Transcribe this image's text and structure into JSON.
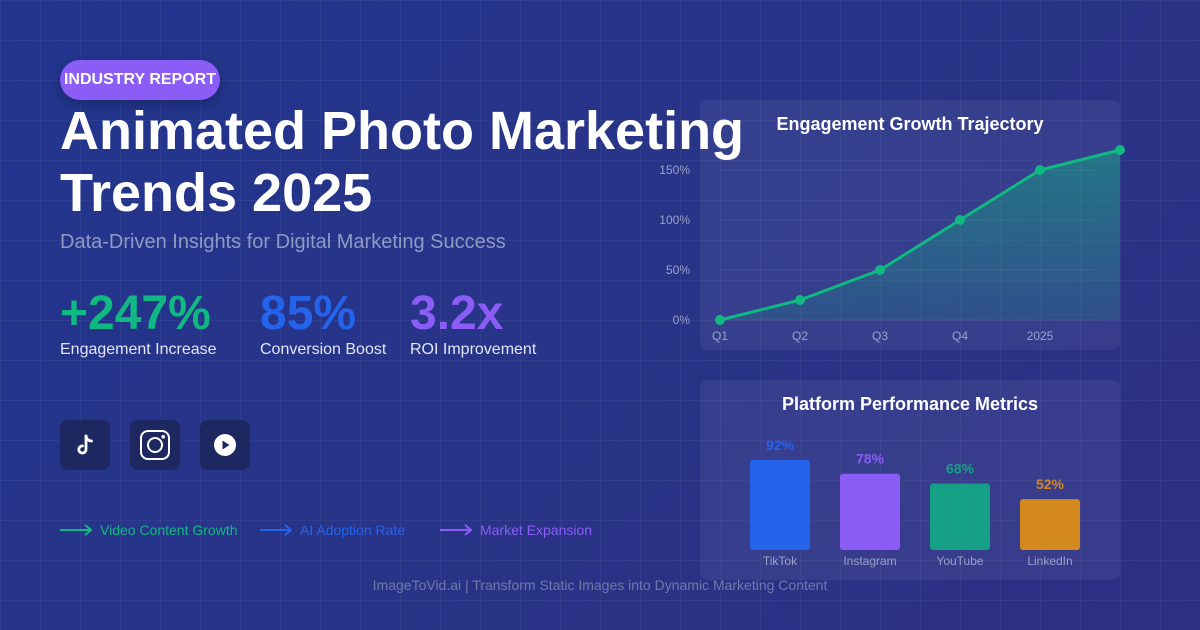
{
  "badge": "INDUSTRY REPORT",
  "title": {
    "line1": "Animated Photo Marketing",
    "line2": "Trends 2025"
  },
  "subtitle": "Data-Driven Insights for Digital Marketing Success",
  "stats": [
    {
      "value": "+247%",
      "label": "Engagement Increase",
      "color": "#10b981"
    },
    {
      "value": "85%",
      "label": "Conversion Boost",
      "color": "#2563eb"
    },
    {
      "value": "3.2x",
      "label": "ROI Improvement",
      "color": "#8b5cf6"
    }
  ],
  "social_icons": [
    "tiktok-icon",
    "instagram-icon",
    "youtube-icon"
  ],
  "legend": [
    {
      "label": "Video Content Growth",
      "color": "#10b981"
    },
    {
      "label": "AI Adoption Rate",
      "color": "#2563eb"
    },
    {
      "label": "Market Expansion",
      "color": "#8b5cf6"
    }
  ],
  "chart_data": [
    {
      "type": "area",
      "title": "Engagement Growth Trajectory",
      "x_ticks": [
        "Q1",
        "Q2",
        "Q3",
        "Q4",
        "2025"
      ],
      "y_ticks": [
        "0%",
        "50%",
        "100%",
        "150%"
      ],
      "ylim": [
        0,
        150
      ],
      "series": [
        {
          "values": [
            0,
            20,
            50,
            100,
            150,
            170
          ],
          "color": "#10b981"
        }
      ],
      "grid": true
    },
    {
      "type": "bar",
      "title": "Platform Performance Metrics",
      "categories": [
        "TikTok",
        "Instagram",
        "YouTube",
        "LinkedIn"
      ],
      "values": [
        92,
        78,
        68,
        52
      ],
      "labels": [
        "92%",
        "78%",
        "68%",
        "52%"
      ],
      "colors": [
        "#2563eb",
        "#8b5cf6",
        "#16a085",
        "#d4891f"
      ]
    }
  ],
  "footer": "ImageToVid.ai | Transform Static Images into Dynamic Marketing Content"
}
